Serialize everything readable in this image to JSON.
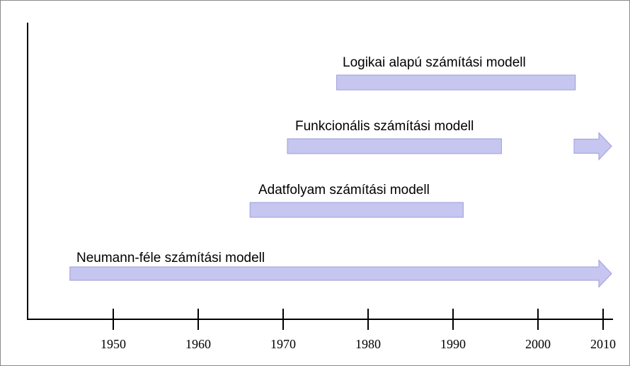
{
  "chart_data": {
    "type": "timeline",
    "title": "",
    "xlabel": "",
    "ylabel": "",
    "x_ticks": [
      1950,
      1960,
      1970,
      1980,
      1990,
      2000,
      2010
    ],
    "colors": {
      "bar_fill": "#c6c6f0",
      "bar_stroke": "#9d9ddb",
      "axis": "#000000"
    },
    "series": [
      {
        "name": "Logikai alapú számítási modell",
        "start": 1976.3,
        "end": 2004.4,
        "continues": false,
        "continuation_arrow": false
      },
      {
        "name": "Funkcionális számítási modell",
        "start": 1970.5,
        "end": 1995.7,
        "continues": false,
        "continuation_arrow": true
      },
      {
        "name": "Adatfolyam számítási modell",
        "start": 1966.1,
        "end": 1991.2,
        "continues": false,
        "continuation_arrow": false
      },
      {
        "name": "Neumann-féle számítási modell",
        "start": 1944.9,
        "end": 2010,
        "continues": true,
        "continuation_arrow": false
      }
    ]
  }
}
